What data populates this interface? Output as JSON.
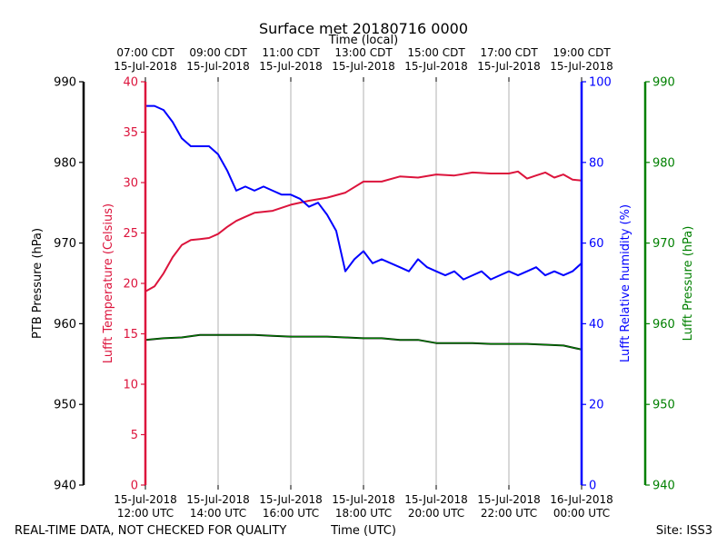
{
  "chart_data": {
    "type": "line",
    "title": "Surface met 20180716 0000",
    "top_axis_label": "Time (local)",
    "bottom_axis_label": "Time (UTC)",
    "footer_left": "REAL-TIME DATA, NOT CHECKED FOR QUALITY",
    "footer_right": "Site: ISS3",
    "x_range_hours_utc": [
      12,
      24
    ],
    "top_ticks": [
      {
        "h": 12,
        "line1": "07:00 CDT",
        "line2": "15-Jul-2018"
      },
      {
        "h": 14,
        "line1": "09:00 CDT",
        "line2": "15-Jul-2018"
      },
      {
        "h": 16,
        "line1": "11:00 CDT",
        "line2": "15-Jul-2018"
      },
      {
        "h": 18,
        "line1": "13:00 CDT",
        "line2": "15-Jul-2018"
      },
      {
        "h": 20,
        "line1": "15:00 CDT",
        "line2": "15-Jul-2018"
      },
      {
        "h": 22,
        "line1": "17:00 CDT",
        "line2": "15-Jul-2018"
      },
      {
        "h": 24,
        "line1": "19:00 CDT",
        "line2": "15-Jul-2018"
      }
    ],
    "bottom_ticks": [
      {
        "h": 12,
        "line1": "15-Jul-2018",
        "line2": "12:00 UTC"
      },
      {
        "h": 14,
        "line1": "15-Jul-2018",
        "line2": "14:00 UTC"
      },
      {
        "h": 16,
        "line1": "15-Jul-2018",
        "line2": "16:00 UTC"
      },
      {
        "h": 18,
        "line1": "15-Jul-2018",
        "line2": "18:00 UTC"
      },
      {
        "h": 20,
        "line1": "15-Jul-2018",
        "line2": "20:00 UTC"
      },
      {
        "h": 22,
        "line1": "15-Jul-2018",
        "line2": "22:00 UTC"
      },
      {
        "h": 24,
        "line1": "16-Jul-2018",
        "line2": "00:00 UTC"
      }
    ],
    "axes": {
      "ptb_pressure": {
        "label": "PTB Pressure (hPa)",
        "ylim": [
          940,
          990
        ],
        "ticks": [
          940,
          950,
          960,
          970,
          980,
          990
        ],
        "color": "#000000"
      },
      "temperature": {
        "label": "Lufft Temperature (Celsius)",
        "ylim": [
          0,
          40
        ],
        "ticks": [
          0,
          5,
          10,
          15,
          20,
          25,
          30,
          35,
          40
        ],
        "color": "#dc143c"
      },
      "humidity": {
        "label": "Lufft Relative humidity (%)",
        "ylim": [
          0,
          100
        ],
        "ticks": [
          0,
          20,
          40,
          60,
          80,
          100
        ],
        "color": "#0000ff"
      },
      "lufft_pressure": {
        "label": "Lufft Pressure (hPa)",
        "ylim": [
          940,
          990
        ],
        "ticks": [
          940,
          950,
          960,
          970,
          980,
          990
        ],
        "color": "#008000"
      }
    },
    "series": [
      {
        "name": "Lufft Temperature",
        "axis": "temperature",
        "color": "#dc143c",
        "x": [
          12.0,
          12.25,
          12.5,
          12.75,
          13.0,
          13.25,
          13.5,
          13.75,
          14.0,
          14.25,
          14.5,
          14.75,
          15.0,
          15.5,
          16.0,
          16.5,
          17.0,
          17.5,
          18.0,
          18.5,
          19.0,
          19.5,
          20.0,
          20.5,
          21.0,
          21.5,
          22.0,
          22.25,
          22.5,
          22.75,
          23.0,
          23.25,
          23.5,
          23.75,
          24.0
        ],
        "y": [
          19.2,
          19.7,
          21.0,
          22.6,
          23.8,
          24.3,
          24.4,
          24.5,
          24.9,
          25.6,
          26.2,
          26.6,
          27.0,
          27.2,
          27.8,
          28.2,
          28.5,
          29.0,
          30.1,
          30.1,
          30.6,
          30.5,
          30.8,
          30.7,
          31.0,
          30.9,
          30.9,
          31.1,
          30.4,
          30.7,
          31.0,
          30.5,
          30.8,
          30.3,
          30.2
        ]
      },
      {
        "name": "Lufft Relative humidity",
        "axis": "humidity",
        "color": "#0000ff",
        "x": [
          12.0,
          12.25,
          12.5,
          12.75,
          13.0,
          13.25,
          13.5,
          13.75,
          14.0,
          14.25,
          14.5,
          14.75,
          15.0,
          15.25,
          15.5,
          15.75,
          16.0,
          16.25,
          16.5,
          16.75,
          17.0,
          17.25,
          17.5,
          17.75,
          18.0,
          18.25,
          18.5,
          18.75,
          19.0,
          19.25,
          19.5,
          19.75,
          20.0,
          20.25,
          20.5,
          20.75,
          21.0,
          21.25,
          21.5,
          21.75,
          22.0,
          22.25,
          22.5,
          22.75,
          23.0,
          23.25,
          23.5,
          23.75,
          24.0
        ],
        "y": [
          94,
          94,
          93,
          90,
          86,
          84,
          84,
          84,
          82,
          78,
          73,
          74,
          73,
          74,
          73,
          72,
          72,
          71,
          69,
          70,
          67,
          63,
          53,
          56,
          58,
          55,
          56,
          55,
          54,
          53,
          56,
          54,
          53,
          52,
          53,
          51,
          52,
          53,
          51,
          52,
          53,
          52,
          53,
          54,
          52,
          53,
          52,
          53,
          55
        ]
      },
      {
        "name": "PTB Pressure",
        "axis": "ptb_pressure",
        "color": "#000000",
        "x": [
          12.0,
          12.5,
          13.0,
          13.5,
          14.0,
          14.5,
          15.0,
          15.5,
          16.0,
          16.5,
          17.0,
          17.5,
          18.0,
          18.5,
          19.0,
          19.5,
          20.0,
          20.5,
          21.0,
          21.5,
          22.0,
          22.5,
          23.0,
          23.5,
          24.0
        ],
        "y": [
          958.0,
          958.2,
          958.3,
          958.6,
          958.6,
          958.6,
          958.6,
          958.5,
          958.4,
          958.4,
          958.4,
          958.3,
          958.2,
          958.2,
          958.0,
          958.0,
          957.6,
          957.6,
          957.6,
          957.5,
          957.5,
          957.5,
          957.4,
          957.3,
          956.8
        ]
      },
      {
        "name": "Lufft Pressure",
        "axis": "lufft_pressure",
        "color": "#008000",
        "x": [
          12.0,
          12.5,
          13.0,
          13.5,
          14.0,
          14.5,
          15.0,
          15.5,
          16.0,
          16.5,
          17.0,
          17.5,
          18.0,
          18.5,
          19.0,
          19.5,
          20.0,
          20.5,
          21.0,
          21.5,
          22.0,
          22.5,
          23.0,
          23.5,
          24.0
        ],
        "y": [
          958.0,
          958.2,
          958.3,
          958.6,
          958.6,
          958.6,
          958.6,
          958.5,
          958.4,
          958.4,
          958.4,
          958.3,
          958.2,
          958.2,
          958.0,
          958.0,
          957.6,
          957.6,
          957.6,
          957.5,
          957.5,
          957.5,
          957.4,
          957.3,
          956.8
        ]
      }
    ]
  }
}
